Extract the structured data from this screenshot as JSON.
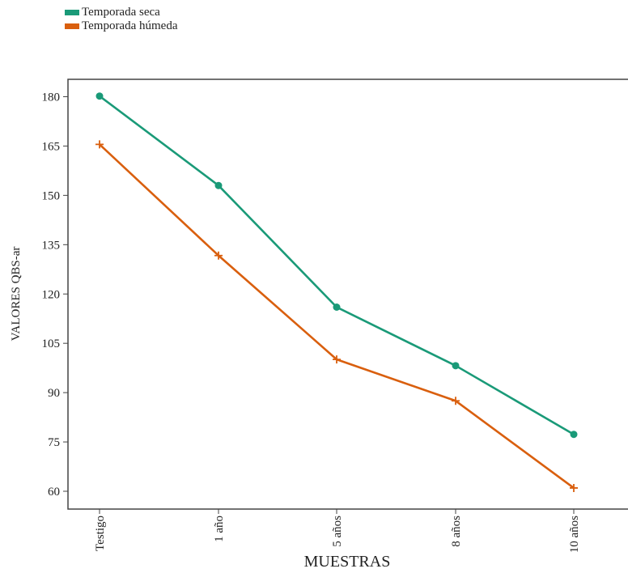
{
  "chart_data": {
    "type": "line",
    "title": "",
    "xlabel": "MUESTRAS",
    "ylabel": "VALORES QBS-ar",
    "categories": [
      "Testigo",
      "1 año",
      "5 años",
      "8 años",
      "10 años"
    ],
    "ylim": [
      56,
      193
    ],
    "yticks": [
      60,
      75,
      90,
      105,
      120,
      135,
      150,
      165,
      180
    ],
    "grid": false,
    "legend_position": "top-left",
    "series": [
      {
        "name": "Temporada seca",
        "color": "#1a9a78",
        "marker": "circle",
        "values": [
          180.2,
          153.0,
          116.0,
          98.2,
          77.3
        ]
      },
      {
        "name": "Temporada húmeda",
        "color": "#d95f0e",
        "marker": "plus",
        "values": [
          165.5,
          131.7,
          100.1,
          87.5,
          61.0
        ]
      }
    ]
  }
}
